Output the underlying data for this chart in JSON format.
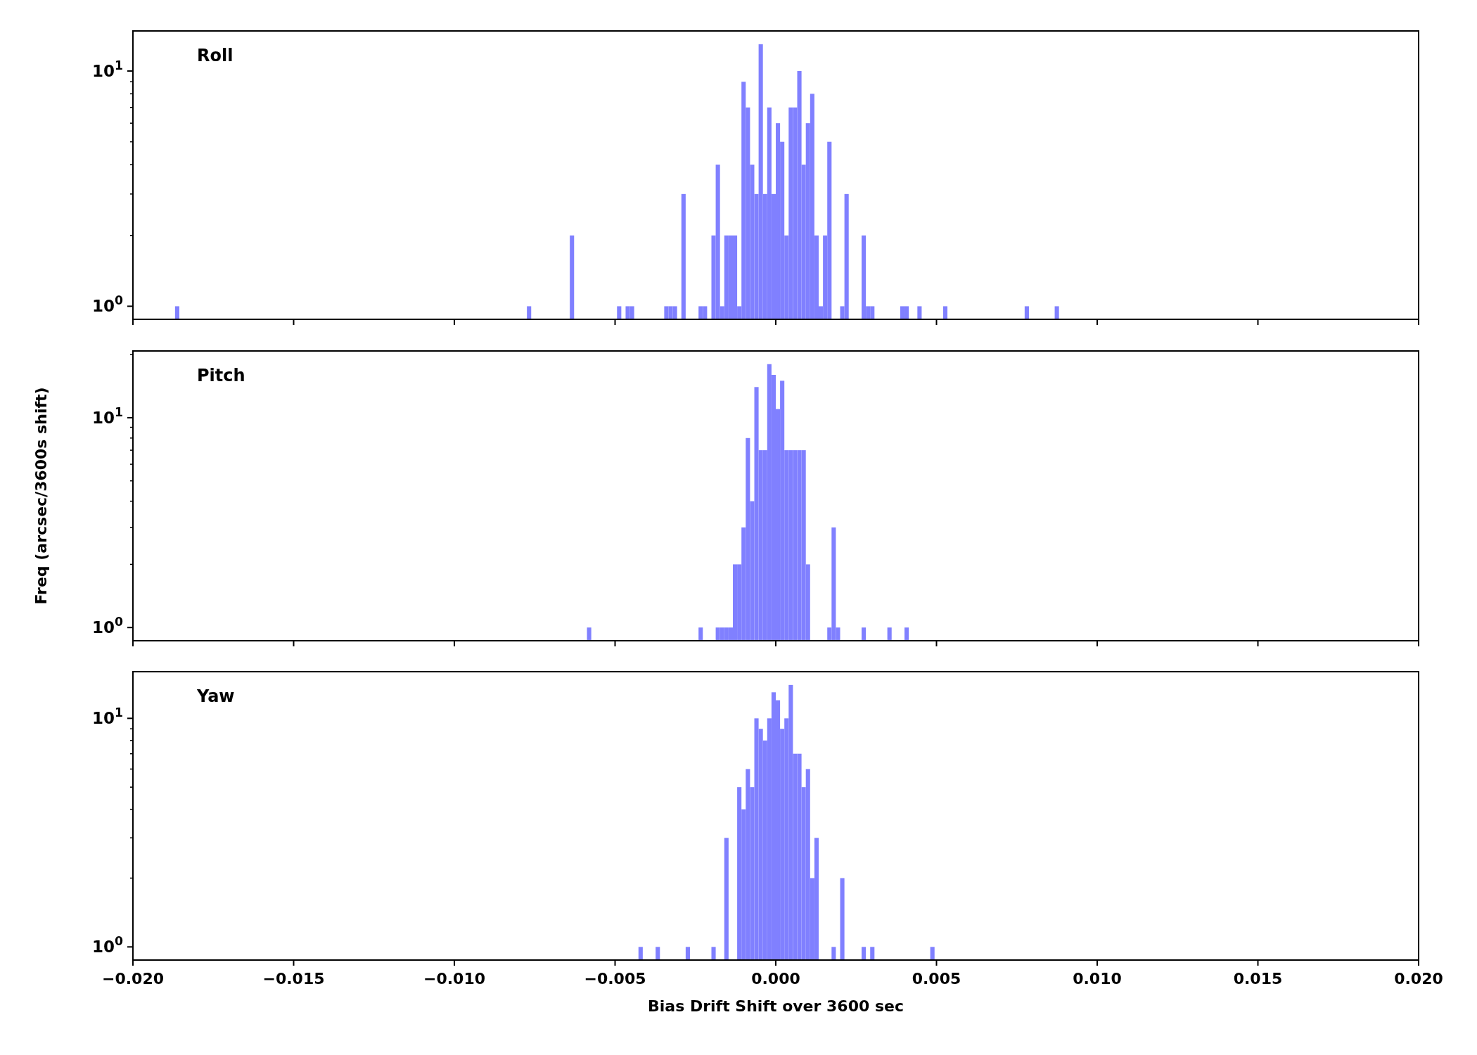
{
  "chart_data": [
    {
      "type": "histogram",
      "title": "Roll",
      "color": "#8080ff",
      "log": "y",
      "grid": false,
      "tick_labels": "y",
      "bins": [
        -0.01869,
        -0.0185565,
        -0.007743,
        -0.0076095,
        -0.006408,
        -0.0062745,
        -0.0049395,
        -0.004806,
        -0.0046725,
        -0.004539,
        -0.0044055,
        -0.003471,
        -0.0033375,
        -0.003204,
        -0.0030705,
        -0.002937,
        -0.0028035,
        -0.002403,
        -0.0022695,
        -0.002136,
        -0.0020025,
        -0.001869,
        -0.0017355,
        -0.001602,
        -0.0014685,
        -0.001335,
        -0.0012015,
        -0.001068,
        -0.0009345,
        -0.000801,
        -0.0006675,
        -0.000534,
        -0.0004005,
        -0.000267,
        -0.0001335,
        0,
        0.0001335,
        0.000267,
        0.0004005,
        0.000534,
        0.0006675,
        0.000801,
        0.0009345,
        0.001068,
        0.0012015,
        0.001335,
        0.0014685,
        0.001602,
        0.0017355,
        0.0020025,
        0.002136,
        0.0022695,
        0.00267,
        0.0028035,
        0.002937,
        0.0030705,
        0.0038715,
        0.004005,
        0.0041385,
        0.0044055,
        0.004539,
        0.0052065,
        0.00534,
        0.007743,
        0.0078765,
        0.0086775,
        0.008811
      ],
      "values": [
        1,
        null,
        1,
        null,
        2,
        null,
        1,
        null,
        1,
        1,
        null,
        1,
        1,
        1,
        null,
        3,
        null,
        1,
        1,
        null,
        2,
        4,
        1,
        2,
        2,
        2,
        1,
        9,
        7,
        4,
        3,
        13,
        3,
        7,
        3,
        6,
        5,
        2,
        7,
        7,
        10,
        4,
        6,
        8,
        2,
        1,
        2,
        5,
        null,
        1,
        3,
        null,
        2,
        1,
        1,
        null,
        1,
        1,
        null,
        1,
        null,
        1,
        null,
        1,
        null,
        1
      ],
      "xlim": [
        -0.02,
        0.02
      ],
      "xticks": [
        {
          "value": -0.02,
          "label": null
        },
        {
          "value": -0.015,
          "label": null
        },
        {
          "value": -0.01,
          "label": null
        },
        {
          "value": -0.005,
          "label": null
        },
        {
          "value": 0,
          "label": null
        },
        {
          "value": 0.005,
          "label": null
        },
        {
          "value": 0.01,
          "label": null
        },
        {
          "value": 0.015,
          "label": null
        },
        {
          "value": 0.02,
          "label": null
        }
      ],
      "ylim": [
        0.88,
        14.8
      ],
      "yticks": [
        {
          "value": 1,
          "label": "10$^{0}$"
        },
        {
          "value": 2,
          "label": null
        },
        {
          "value": 3,
          "label": null
        },
        {
          "value": 4,
          "label": null
        },
        {
          "value": 5,
          "label": null
        },
        {
          "value": 6,
          "label": null
        },
        {
          "value": 7,
          "label": null
        },
        {
          "value": 8,
          "label": null
        },
        {
          "value": 9,
          "label": null
        },
        {
          "value": 10,
          "label": "10$^{1}$"
        }
      ]
    },
    {
      "type": "histogram",
      "title": "Pitch",
      "ylabel": "Freq (arcsec/3600s shift)",
      "color": "#8080ff",
      "log": "y",
      "grid": false,
      "tick_labels": "y",
      "bins": [
        -0.005874,
        -0.0057405,
        -0.002403,
        -0.0022695,
        -0.001869,
        -0.0017355,
        -0.001602,
        -0.0014685,
        -0.001335,
        -0.0012015,
        -0.001068,
        -0.0009345,
        -0.000801,
        -0.0006675,
        -0.000534,
        -0.0004005,
        -0.000267,
        -0.0001335,
        0,
        0.0001335,
        0.000267,
        0.0004005,
        0.000534,
        0.0006675,
        0.000801,
        0.0009345,
        0.001068,
        0.001602,
        0.0017355,
        0.001869,
        0.0020025,
        0.00267,
        0.0028035,
        0.003471,
        0.0036045,
        0.004005,
        0.0041385
      ],
      "values": [
        1,
        null,
        1,
        null,
        1,
        1,
        1,
        1,
        2,
        2,
        3,
        8,
        4,
        14,
        7,
        7,
        18,
        16,
        11,
        15,
        7,
        7,
        7,
        7,
        7,
        2,
        null,
        1,
        3,
        1,
        null,
        1,
        null,
        1,
        null,
        1
      ],
      "xlim": [
        -0.02,
        0.02
      ],
      "xticks": [
        {
          "value": -0.02,
          "label": null
        },
        {
          "value": -0.015,
          "label": null
        },
        {
          "value": -0.01,
          "label": null
        },
        {
          "value": -0.005,
          "label": null
        },
        {
          "value": 0,
          "label": null
        },
        {
          "value": 0.005,
          "label": null
        },
        {
          "value": 0.01,
          "label": null
        },
        {
          "value": 0.015,
          "label": null
        },
        {
          "value": 0.02,
          "label": null
        }
      ],
      "ylim": [
        0.865,
        20.8
      ],
      "yticks": [
        {
          "value": 1,
          "label": "10$^{0}$"
        },
        {
          "value": 2,
          "label": null
        },
        {
          "value": 3,
          "label": null
        },
        {
          "value": 4,
          "label": null
        },
        {
          "value": 5,
          "label": null
        },
        {
          "value": 6,
          "label": null
        },
        {
          "value": 7,
          "label": null
        },
        {
          "value": 8,
          "label": null
        },
        {
          "value": 9,
          "label": null
        },
        {
          "value": 10,
          "label": "10$^{1}$"
        },
        {
          "value": 20,
          "label": null
        }
      ]
    },
    {
      "type": "histogram",
      "title": "Yaw",
      "xlabel": "Bias Drift Shift over 3600 sec",
      "color": "#8080ff",
      "log": "y",
      "grid": false,
      "bins": [
        -0.004272,
        -0.0041385,
        -0.003738,
        -0.0036045,
        -0.0028035,
        -0.00267,
        -0.0020025,
        -0.001869,
        -0.001602,
        -0.0014685,
        -0.0012015,
        -0.001068,
        -0.0009345,
        -0.000801,
        -0.0006675,
        -0.000534,
        -0.0004005,
        -0.000267,
        -0.0001335,
        0,
        0.0001335,
        0.000267,
        0.0004005,
        0.000534,
        0.0006675,
        0.000801,
        0.0009345,
        0.001068,
        0.0012015,
        0.001335,
        0.0017355,
        0.001869,
        0.0020025,
        0.002136,
        0.00267,
        0.0028035,
        0.002937,
        0.0030705,
        0.004806,
        0.0049395
      ],
      "values": [
        1,
        null,
        1,
        null,
        1,
        null,
        1,
        null,
        3,
        null,
        5,
        4,
        6,
        5,
        10,
        9,
        8,
        10,
        13,
        12,
        9,
        10,
        14,
        7,
        7,
        5,
        6,
        2,
        3,
        null,
        1,
        null,
        2,
        null,
        1,
        null,
        1,
        null,
        1
      ],
      "xlim": [
        -0.02,
        0.02
      ],
      "xticks": [
        {
          "value": -0.02,
          "label": "−0.020"
        },
        {
          "value": -0.015,
          "label": "−0.015"
        },
        {
          "value": -0.01,
          "label": "−0.010"
        },
        {
          "value": -0.005,
          "label": "−0.005"
        },
        {
          "value": 0,
          "label": "0.000"
        },
        {
          "value": 0.005,
          "label": "0.005"
        },
        {
          "value": 0.01,
          "label": "0.010"
        },
        {
          "value": 0.015,
          "label": "0.015"
        },
        {
          "value": 0.02,
          "label": "0.020"
        }
      ],
      "ylim": [
        0.876,
        16.0
      ],
      "yticks": [
        {
          "value": 1,
          "label": "10$^{0}$"
        },
        {
          "value": 2,
          "label": null
        },
        {
          "value": 3,
          "label": null
        },
        {
          "value": 4,
          "label": null
        },
        {
          "value": 5,
          "label": null
        },
        {
          "value": 6,
          "label": null
        },
        {
          "value": 7,
          "label": null
        },
        {
          "value": 8,
          "label": null
        },
        {
          "value": 9,
          "label": null
        },
        {
          "value": 10,
          "label": "10$^{1}$"
        }
      ]
    }
  ]
}
